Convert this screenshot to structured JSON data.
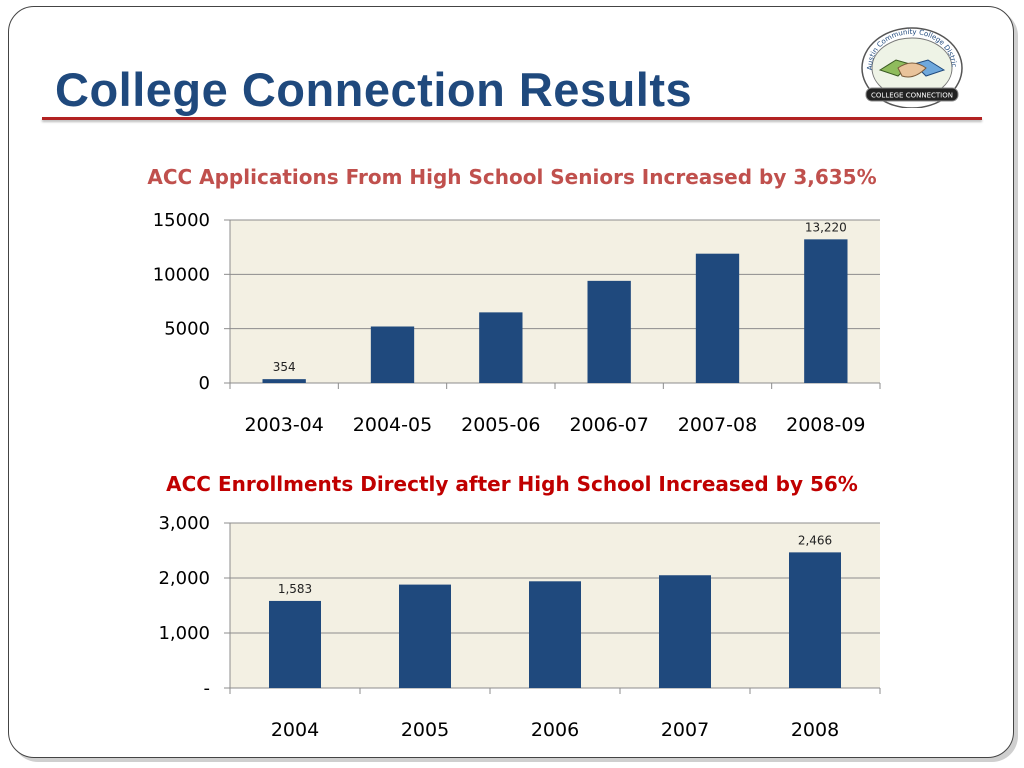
{
  "slide": {
    "title": "College Connection Results",
    "logo": {
      "ring_text": "Austin Community College District",
      "banner_text": "COLLEGE CONNECTION",
      "icon": "handshake-icon"
    }
  },
  "colors": {
    "title": "#1f497d",
    "rule": "#b22222",
    "bar": "#1f497d",
    "plot_bg": "#f3f0e3",
    "chart1_title": "#c0504d",
    "chart2_title": "#c00000"
  },
  "chart_data": [
    {
      "type": "bar",
      "title": "ACC Applications From High School Seniors Increased by 3,635%",
      "categories": [
        "2003-04",
        "2004-05",
        "2005-06",
        "2006-07",
        "2007-08",
        "2008-09"
      ],
      "values": [
        354,
        5200,
        6500,
        9400,
        11900,
        13220
      ],
      "data_labels": [
        "354",
        "",
        "",
        "",
        "",
        "13,220"
      ],
      "ylim": [
        0,
        15000
      ],
      "yticks": [
        0,
        5000,
        10000,
        15000
      ],
      "ytick_labels": [
        "0",
        "5000",
        "10000",
        "15000"
      ],
      "grid": true,
      "legend": "none"
    },
    {
      "type": "bar",
      "title": "ACC Enrollments Directly after High School Increased by 56%",
      "categories": [
        "2004",
        "2005",
        "2006",
        "2007",
        "2008"
      ],
      "values": [
        1583,
        1880,
        1940,
        2050,
        2466
      ],
      "data_labels": [
        "1,583",
        "",
        "",
        "",
        "2,466"
      ],
      "ylim": [
        0,
        3000
      ],
      "yticks": [
        0,
        1000,
        2000,
        3000
      ],
      "ytick_labels": [
        "-",
        "1,000",
        "2,000",
        "3,000"
      ],
      "grid": true,
      "legend": "none"
    }
  ]
}
